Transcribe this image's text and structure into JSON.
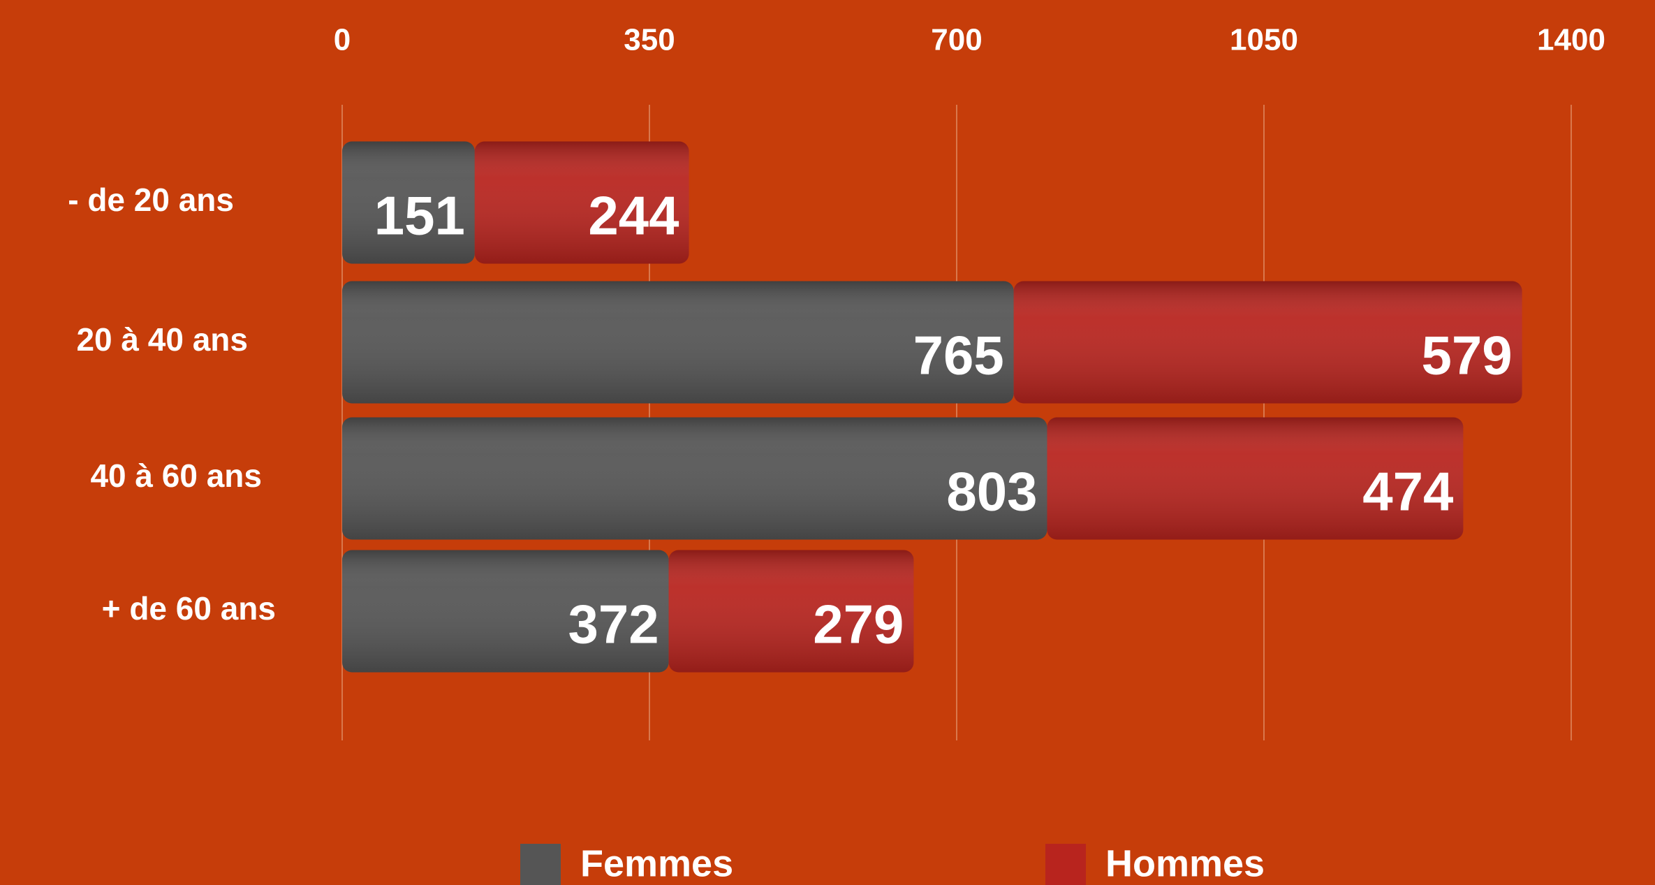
{
  "chart_data": {
    "type": "stacked_bar_horizontal",
    "categories": [
      "- de 20 ans",
      "20 à 40 ans",
      "40 à 60 ans",
      "+ de 60 ans"
    ],
    "series": [
      {
        "name": "Femmes",
        "color": "#555555",
        "values": [
          151,
          765,
          803,
          372
        ]
      },
      {
        "name": "Hommes",
        "color": "#b8241e",
        "values": [
          244,
          579,
          474,
          279
        ]
      }
    ],
    "xlim": [
      0,
      1400
    ],
    "xticks": [
      0,
      350,
      700,
      1050,
      1400
    ],
    "grid": true
  }
}
